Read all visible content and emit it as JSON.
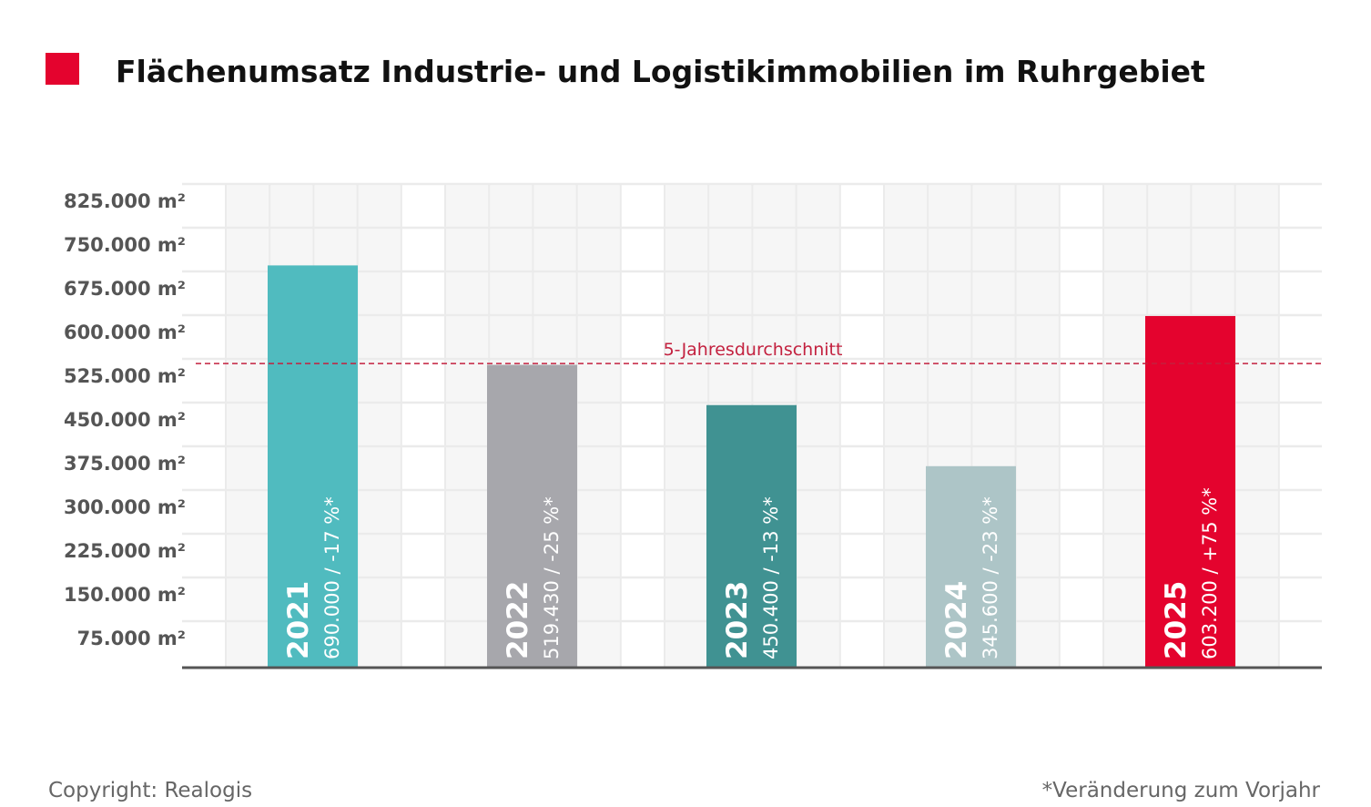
{
  "chart_data": {
    "type": "bar",
    "title": "Flächenumsatz Industrie- und Logistikimmobilien im Ruhrgebiet",
    "categories": [
      "2021",
      "2022",
      "2023",
      "2024",
      "2025"
    ],
    "values": [
      690000,
      519430,
      450400,
      345600,
      603200
    ],
    "value_labels": [
      "690.000 / -17 %*",
      "519.430 / -25 %*",
      "450.400 / -13 %*",
      "345.600 / -23 %*",
      "603.200 / +75 %*"
    ],
    "colors": [
      "#50bbbf",
      "#a7a7ac",
      "#409292",
      "#adc5c7",
      "#e4032e"
    ],
    "ylim": [
      0,
      825000
    ],
    "yticks": [
      75000,
      150000,
      225000,
      300000,
      375000,
      450000,
      525000,
      600000,
      675000,
      750000,
      825000
    ],
    "ytick_labels": [
      "75.000 m²",
      "150.000 m²",
      "225.000 m²",
      "300.000 m²",
      "375.000 m²",
      "450.000 m²",
      "525.000 m²",
      "600.000 m²",
      "675.000 m²",
      "750.000 m²",
      "825.000 m²"
    ],
    "reference_line": {
      "label": "5-Jahresdurchschnitt",
      "value": 521726,
      "color": "#c3213f",
      "style": "dashed"
    },
    "grid": true,
    "xlabel": "",
    "ylabel": ""
  },
  "legend_marker_color": "#e4032e",
  "footer": {
    "copyright": "Copyright: Realogis",
    "note": "*Veränderung zum Vorjahr"
  }
}
